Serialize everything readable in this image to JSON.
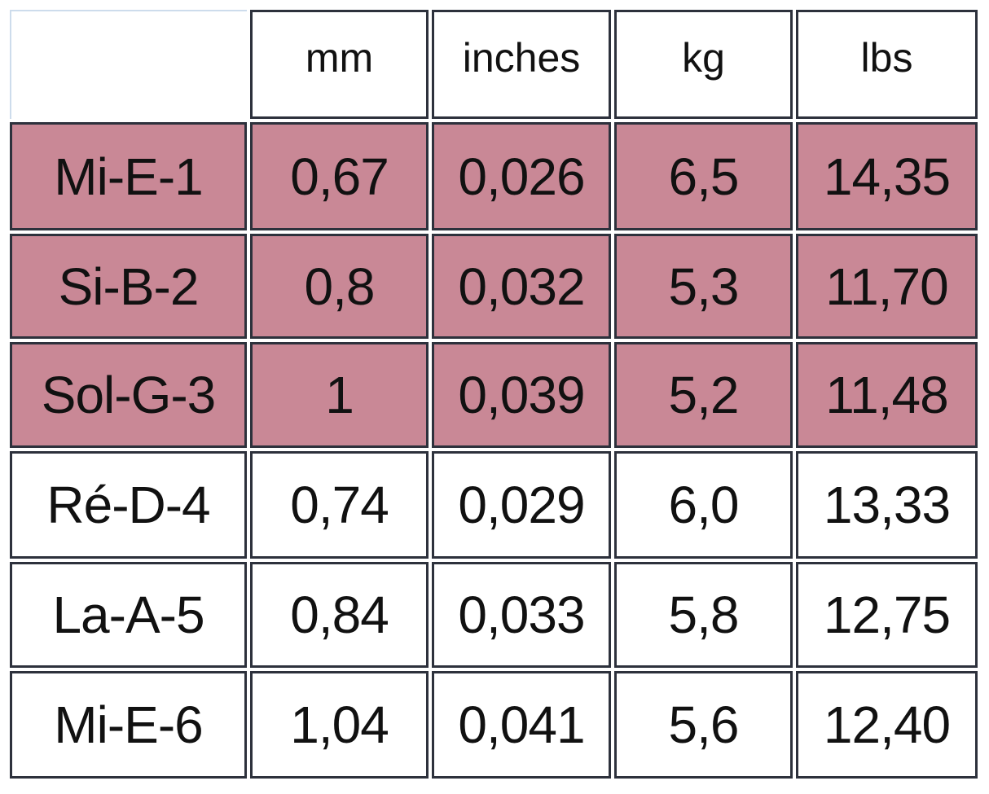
{
  "table": {
    "header": [
      "mm",
      "inches",
      "kg",
      "lbs"
    ],
    "highlight_color": "#c98896",
    "rows": [
      {
        "cells": [
          "Mi-E-1",
          "0,67",
          "0,026",
          "6,5",
          "14,35"
        ],
        "highlighted": true
      },
      {
        "cells": [
          "Si-B-2",
          "0,8",
          "0,032",
          "5,3",
          "11,70"
        ],
        "highlighted": true
      },
      {
        "cells": [
          "Sol-G-3",
          "1",
          "0,039",
          "5,2",
          "11,48"
        ],
        "highlighted": true
      },
      {
        "cells": [
          "Ré-D-4",
          "0,74",
          "0,029",
          "6,0",
          "13,33"
        ],
        "highlighted": false
      },
      {
        "cells": [
          "La-A-5",
          "0,84",
          "0,033",
          "5,8",
          "12,75"
        ],
        "highlighted": false
      },
      {
        "cells": [
          "Mi-E-6",
          "1,04",
          "0,041",
          "5,6",
          "12,40"
        ],
        "highlighted": false
      }
    ]
  }
}
